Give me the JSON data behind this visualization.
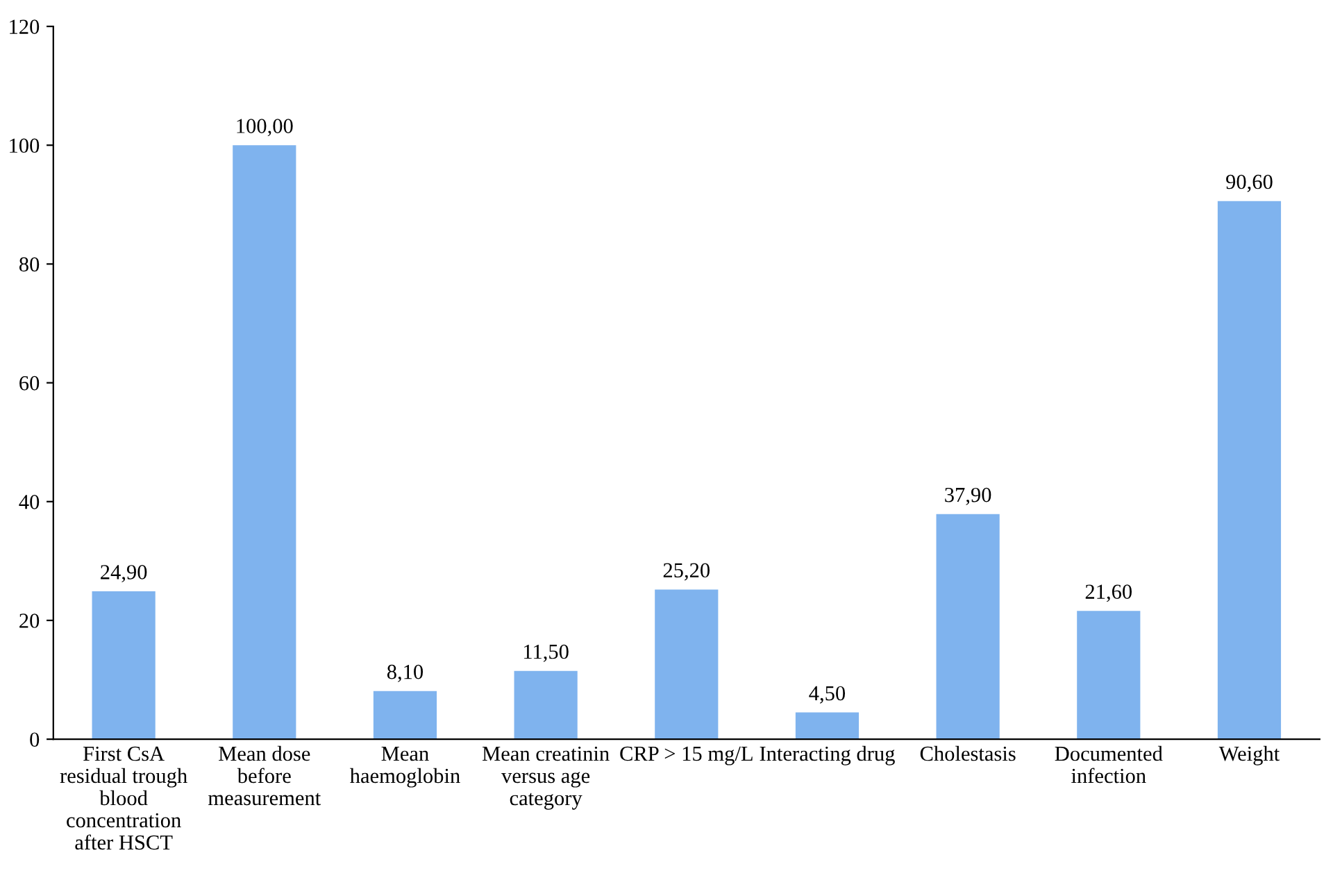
{
  "chart_data": {
    "type": "bar",
    "categories": [
      "First CsA\nresidual trough\nblood\nconcentration\nafter HSCT",
      "Mean dose\nbefore\nmeasurement",
      "Mean\nhaemoglobin",
      "Mean creatinin\nversus age\ncategory",
      "CRP > 15 mg/L",
      "Interacting drug",
      "Cholestasis",
      "Documented\ninfection",
      "Weight"
    ],
    "values": [
      24.9,
      100.0,
      8.1,
      11.5,
      25.2,
      4.5,
      37.9,
      21.6,
      90.6
    ],
    "value_labels": [
      "24,90",
      "100,00",
      "8,10",
      "11,50",
      "25,20",
      "4,50",
      "37,90",
      "21,60",
      "90,60"
    ],
    "color": "#7fb3ee",
    "ylim": [
      0,
      120
    ],
    "yticks": [
      0,
      20,
      40,
      60,
      80,
      100,
      120
    ],
    "grid": false,
    "legend": false
  }
}
